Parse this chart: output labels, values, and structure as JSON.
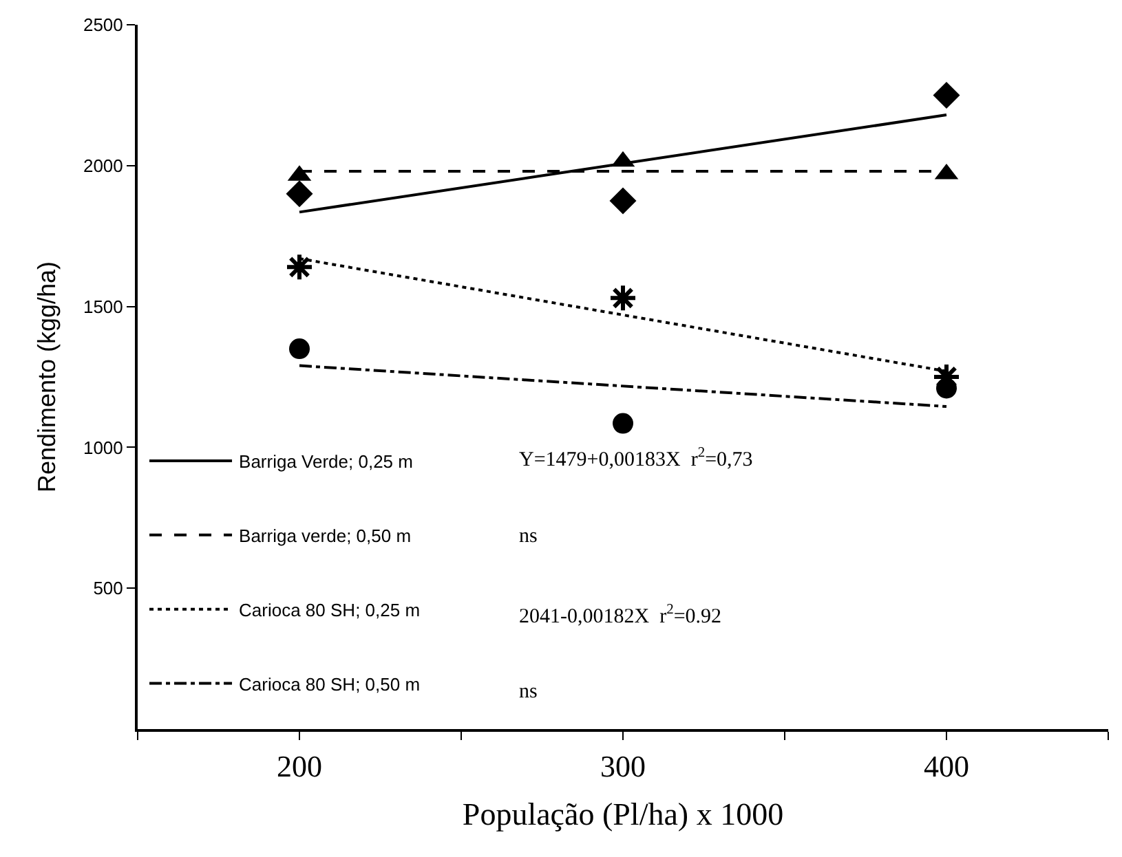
{
  "chart_data": {
    "type": "scatter",
    "xlabel": "População (Pl/ha) x 1000",
    "ylabel": "Rendimento (kgg/ha)",
    "xlim": [
      150,
      450
    ],
    "xticks": [
      {
        "value": 150,
        "label": null
      },
      200,
      {
        "value": 250,
        "label": null
      },
      300,
      {
        "value": 350,
        "label": null
      },
      400,
      {
        "value": 450,
        "label": null
      }
    ],
    "ylim": [
      0,
      2500
    ],
    "yticks": [
      500,
      1000,
      1500,
      2000,
      2500
    ],
    "legend": "bottom left",
    "series": [
      {
        "marker": "diamond",
        "color": "#000000",
        "x": [
          200,
          300,
          400
        ],
        "values": [
          1900,
          1875,
          2250
        ]
      },
      {
        "marker": "triangle",
        "color": "#000000",
        "x": [
          200,
          300,
          400
        ],
        "values": [
          1965,
          2015,
          1970
        ]
      },
      {
        "marker": "cross",
        "color": "#000000",
        "x": [
          200,
          300,
          400
        ],
        "values": [
          1640,
          1530,
          1250
        ]
      },
      {
        "marker": "circle",
        "color": "#000000",
        "x": [
          200,
          300,
          400
        ],
        "values": [
          1350,
          1085,
          1210
        ]
      },
      {
        "type": "line",
        "name": "Barriga Verde; 0,25 m",
        "line_style": "solid",
        "color": "#000000",
        "x": [
          200,
          400
        ],
        "values": [
          1835,
          2180
        ]
      },
      {
        "type": "line",
        "name": "Barriga verde; 0,50 m",
        "line_style": "dashed",
        "color": "#000000",
        "x": [
          200,
          400
        ],
        "values": [
          1980,
          1980
        ]
      },
      {
        "type": "line",
        "name": "Carioca 80 SH; 0,25 m",
        "line_style": "dotted",
        "color": "#000000",
        "x": [
          200,
          400
        ],
        "values": [
          1670,
          1270
        ]
      },
      {
        "type": "line",
        "name": "Carioca 80 SH; 0,50 m",
        "line_style": "dashdot",
        "color": "#000000",
        "x": [
          200,
          400
        ],
        "values": [
          1290,
          1145
        ]
      }
    ],
    "annotations": [
      "Y=1479+0,00183X  r$^{2}$=0,73",
      "ns",
      "2041-0,00182X  r$^{2}$=0.92",
      "ns"
    ]
  }
}
